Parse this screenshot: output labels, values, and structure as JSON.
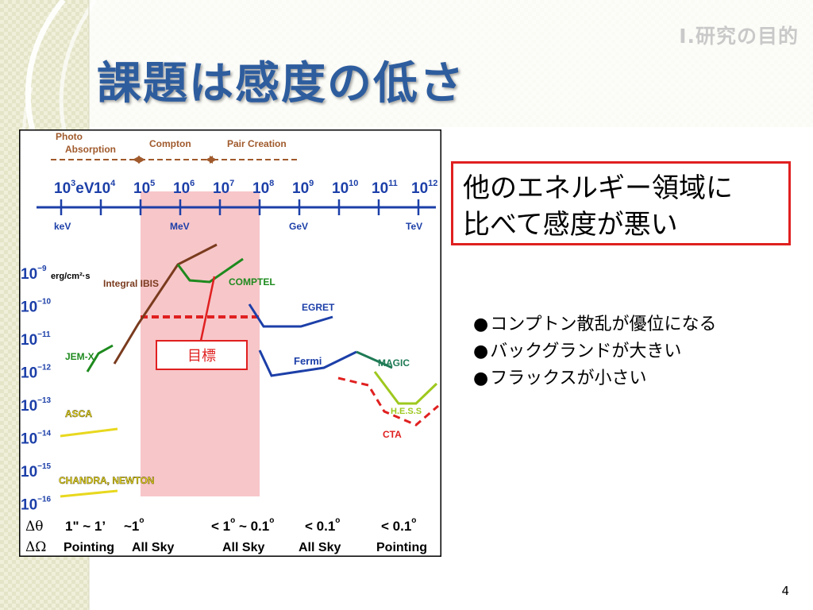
{
  "slide": {
    "section_tag": "I.研究の目的",
    "title": "課題は感度の低さ",
    "page_number": "4"
  },
  "callout": {
    "lines": [
      "他のエネルギー領域に",
      "比べて感度が悪い"
    ]
  },
  "bullets": [
    "コンプトン散乱が優位になる",
    "バックグランドが大きい",
    "フラックスが小さい"
  ],
  "figure": {
    "process_labels": [
      {
        "text": "Photo",
        "color": "#a05a2c"
      },
      {
        "text": "Absorption",
        "color": "#a05a2c"
      },
      {
        "text": "Compton",
        "color": "#a05a2c"
      },
      {
        "text": "Pair Creation",
        "color": "#a05a2c"
      }
    ],
    "energy_ticks": [
      {
        "mant": "10",
        "exp": "3",
        "suffix": "eV"
      },
      {
        "mant": "10",
        "exp": "4"
      },
      {
        "mant": "10",
        "exp": "5"
      },
      {
        "mant": "10",
        "exp": "6"
      },
      {
        "mant": "10",
        "exp": "7"
      },
      {
        "mant": "10",
        "exp": "8"
      },
      {
        "mant": "10",
        "exp": "9"
      },
      {
        "mant": "10",
        "exp": "10"
      },
      {
        "mant": "10",
        "exp": "11"
      },
      {
        "mant": "10",
        "exp": "12"
      }
    ],
    "scale_labels": [
      "keV",
      "MeV",
      "GeV",
      "TeV"
    ],
    "sensitivity_ticks": [
      "−9",
      "−10",
      "−11",
      "−12",
      "−13",
      "−14",
      "−15",
      "−16"
    ],
    "sensitivity_unit": "erg/cm²·s",
    "instruments": [
      {
        "name": "Integral IBIS",
        "color": "#7a3b1e"
      },
      {
        "name": "COMPTEL",
        "color": "#1e8a1e"
      },
      {
        "name": "EGRET",
        "color": "#1c3fa8"
      },
      {
        "name": "JEM-X",
        "color": "#1e8a1e"
      },
      {
        "name": "Fermi",
        "color": "#1c3fa8"
      },
      {
        "name": "MAGIC",
        "color": "#1e7a55"
      },
      {
        "name": "H.E.S.S",
        "color": "#9ec81e"
      },
      {
        "name": "CTA",
        "color": "#e02020"
      },
      {
        "name": "ASCA",
        "color": "#e8d81e"
      },
      {
        "name": "CHANDRA, NEWTON",
        "color": "#e8d81e"
      }
    ],
    "target_label": "目標",
    "colors": {
      "axis": "#1c3fa8",
      "target_band": "#f7c6c9",
      "target_line": "#e02020",
      "frame": "#000000"
    },
    "row_headers": [
      "Δθ",
      "ΔΩ"
    ],
    "angular_resolution": [
      {
        "text": "1\" ~ 1’"
      },
      {
        "text": "~1",
        "sup": "o"
      },
      {
        "text": "< 1",
        "sup": "o",
        "tail": " ~ 0.1",
        "sup2": "o"
      },
      {
        "text": "< 0.1",
        "sup": "o"
      },
      {
        "text": "< 0.1",
        "sup": "o"
      }
    ],
    "field_of_view": [
      "Pointing",
      "All Sky",
      "All Sky",
      "All Sky",
      "Pointing"
    ]
  }
}
